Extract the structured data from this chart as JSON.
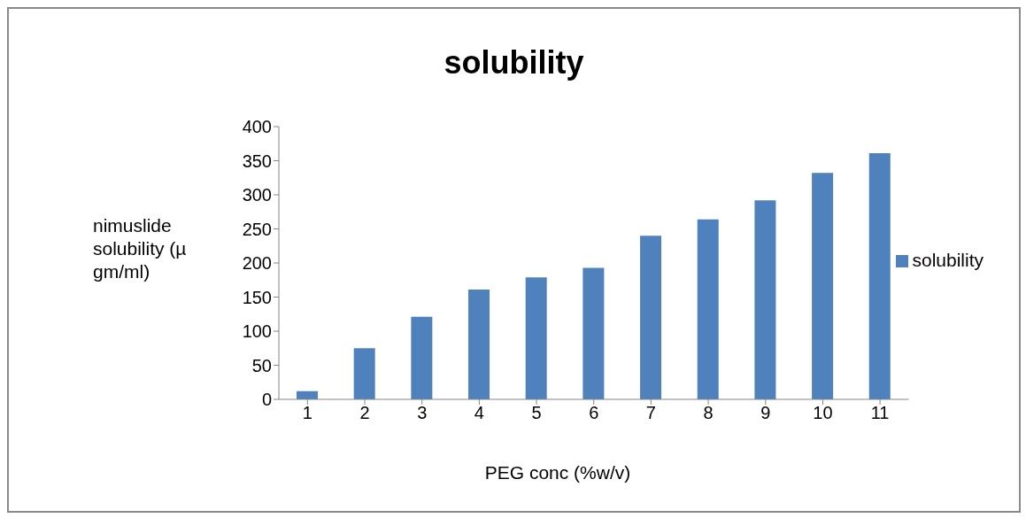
{
  "chart_data": {
    "type": "bar",
    "title": "solubility",
    "xlabel": "PEG conc (%w/v)",
    "ylabel": "nimuslide solubility (µ gm/ml)",
    "categories": [
      "1",
      "2",
      "3",
      "4",
      "5",
      "6",
      "7",
      "8",
      "9",
      "10",
      "11"
    ],
    "series": [
      {
        "name": "solubility",
        "color": "#4f81bd",
        "values": [
          12,
          75,
          121,
          161,
          179,
          193,
          240,
          264,
          292,
          332,
          361
        ]
      }
    ],
    "ylim": [
      0,
      400
    ],
    "yticks": [
      0,
      50,
      100,
      150,
      200,
      250,
      300,
      350,
      400
    ],
    "grid": false,
    "legend": "right"
  }
}
